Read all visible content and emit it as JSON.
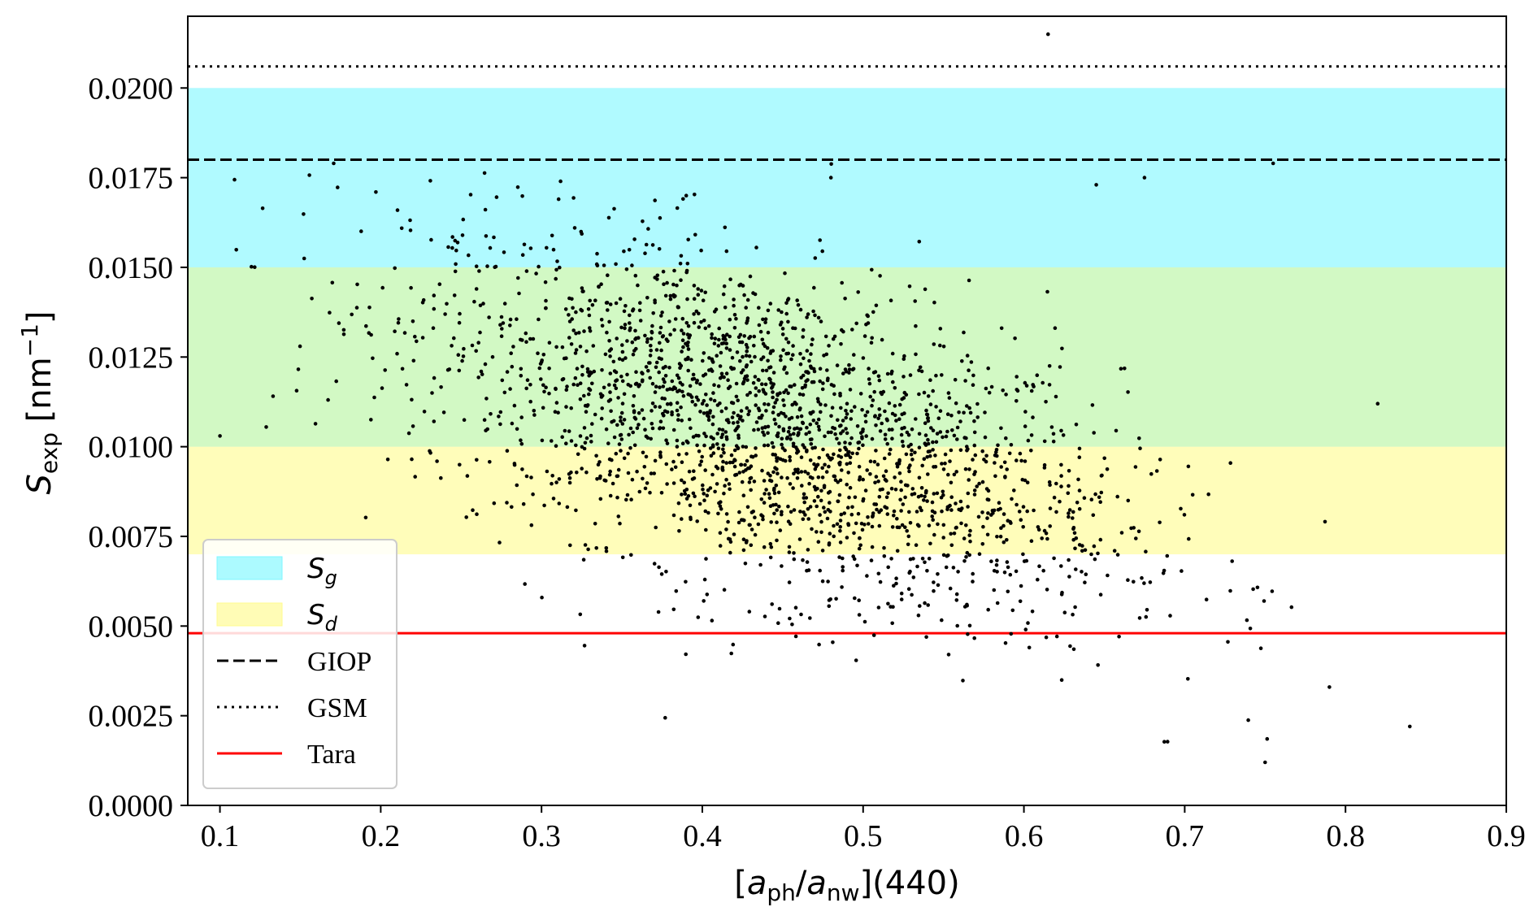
{
  "chart_data": {
    "type": "scatter",
    "title": "",
    "xlabel": "[a_ph/a_nw](440)",
    "ylabel": "S_exp [nm^-1]",
    "xlim": [
      0.08,
      0.9
    ],
    "ylim": [
      0.0,
      0.022
    ],
    "x_ticks": [
      "0.1",
      "0.2",
      "0.3",
      "0.4",
      "0.5",
      "0.6",
      "0.7",
      "0.8",
      "0.9"
    ],
    "y_ticks": [
      "0.0000",
      "0.0025",
      "0.0050",
      "0.0075",
      "0.0100",
      "0.0125",
      "0.0150",
      "0.0175",
      "0.0200"
    ],
    "grid": false,
    "legend_position": "lower-left",
    "bands": [
      {
        "name": "S_g",
        "ymin": 0.015,
        "ymax": 0.02,
        "color": "#7ff7ff"
      },
      {
        "name": "S_d",
        "ymin": 0.007,
        "ymax": 0.01,
        "color": "#fffb8f"
      },
      {
        "name": "",
        "ymin": 0.01,
        "ymax": 0.015,
        "color": "#b7f5a0"
      }
    ],
    "reference_lines": [
      {
        "name": "GIOP",
        "y": 0.018,
        "style": "dashed",
        "color": "#000000"
      },
      {
        "name": "GSM",
        "y": 0.0206,
        "style": "dotted",
        "color": "#000000"
      },
      {
        "name": "Tara",
        "y": 0.0048,
        "style": "solid",
        "color": "#ff0000"
      }
    ],
    "scatter_series": {
      "color": "#000000",
      "count": 2300,
      "center_x": 0.44,
      "center_y": 0.0082,
      "x_range_observed": [
        0.1,
        0.84
      ],
      "y_range_observed": [
        0.0012,
        0.0215
      ],
      "outliers": [
        {
          "x": 0.615,
          "y": 0.0215
        },
        {
          "x": 0.84,
          "y": 0.0022
        },
        {
          "x": 0.75,
          "y": 0.0012
        },
        {
          "x": 0.82,
          "y": 0.0112
        },
        {
          "x": 0.79,
          "y": 0.0033
        },
        {
          "x": 0.1,
          "y": 0.0103
        },
        {
          "x": 0.675,
          "y": 0.0175
        },
        {
          "x": 0.645,
          "y": 0.0173
        },
        {
          "x": 0.48,
          "y": 0.0175
        },
        {
          "x": 0.197,
          "y": 0.0171
        },
        {
          "x": 0.39,
          "y": 0.017
        },
        {
          "x": 0.755,
          "y": 0.0179
        }
      ]
    },
    "legend_entries": [
      "S_g",
      "S_d",
      "GIOP",
      "GSM",
      "Tara"
    ]
  }
}
